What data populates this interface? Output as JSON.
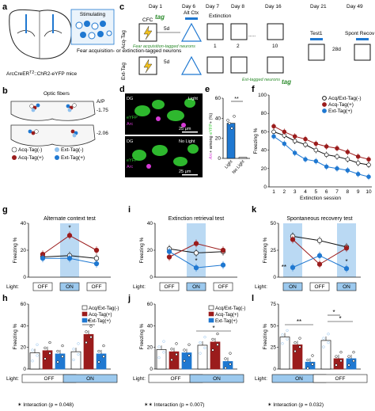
{
  "colors": {
    "acq_neg": "#ffffff",
    "acq_pos": "#9b1c1c",
    "ext_pos": "#1f78d1",
    "ext_light": "#8fc1ee",
    "on_shade": "#9cc9ee",
    "green_tag": "#2a8a2a",
    "microscope_bg": "#000000",
    "yfp_green": "#33cc33",
    "arc_magenta": "#d63ad6"
  },
  "panels": {
    "a": {
      "letter": "a",
      "stimulating": "Stimulating",
      "caption": "Fear acquisition- or extinction-tagged neurons",
      "mouse_line": "ArcCreER",
      "mouse_sup": "T2",
      "mouse_rest": "::ChR2-eYFP mice"
    },
    "b": {
      "letter": "b",
      "title": "Optic fibers",
      "ap_label": "A/P",
      "ap1": "-1.75",
      "ap2": "-2.06",
      "legend": [
        {
          "label": "Acq-Tag(-)",
          "color": "#ffffff"
        },
        {
          "label": "Ext-Tag(-)",
          "color": "#8fc1ee"
        },
        {
          "label": "Acq-Tag(+)",
          "color": "#9b1c1c"
        },
        {
          "label": "Ext-Tag(+)",
          "color": "#1f78d1"
        }
      ]
    },
    "c": {
      "letter": "c",
      "days": [
        "Day 1",
        "Day 6",
        "Day 7",
        "Day 8",
        "Day 16",
        "Day 21",
        "Day 49"
      ],
      "row1": "Acq-Tag",
      "row2": "Ext-Tag",
      "cfc": "CFC",
      "alt_ctx": "Alt Ctx",
      "extinction": "Extinction",
      "tag": "tag",
      "gap": "5d",
      "gap2": "28d",
      "fear_label": "Fear acquisition-tagged neurons",
      "ext_label": "Ext-tagged neurons",
      "test1": "Test1",
      "spont": "Spont Recov",
      "box_nums": [
        "1",
        "1",
        "2",
        "10",
        "1"
      ],
      "dots": "....."
    },
    "d": {
      "letter": "d",
      "region": "DG",
      "light": "Light",
      "no_light": "No Light",
      "scale": "25 μm",
      "eyfp": "eYFP",
      "arc": "Arc"
    },
    "e": {
      "letter": "e",
      "sig": "**",
      "ylabel_parts": [
        "Arc",
        "+ among ",
        "eYFP",
        "+ (%)"
      ]
    },
    "f": {
      "letter": "f",
      "title": "",
      "xlabel": "Extinction session",
      "ylabel": "Freezing %"
    },
    "g": {
      "letter": "g",
      "title": "Alternate context test",
      "ylabel": "Freezing %",
      "sig": [
        "*"
      ]
    },
    "i": {
      "letter": "i",
      "title": "Extinction retrieval test",
      "ylabel": "Freezing %",
      "sig": [
        "*"
      ]
    },
    "k": {
      "letter": "k",
      "title": "Spontaneous recovery test",
      "ylabel": "Freezing %",
      "sig": [
        "**",
        "*"
      ]
    },
    "h": {
      "letter": "h",
      "ylabel": "Freezing %",
      "sig": [
        "*"
      ],
      "interaction": "✶ Interaction (p = 0.048)"
    },
    "j": {
      "letter": "j",
      "ylabel": "Freezing %",
      "sig": [
        "*"
      ],
      "interaction": "✶✶ Interaction (p = 0.007)"
    },
    "l": {
      "letter": "l",
      "ylabel": "Freezing %",
      "sig": [
        "**",
        "*",
        "*"
      ],
      "interaction": "✶ Interaction (p = 0.032)"
    },
    "light_label": "Light:",
    "on": "ON",
    "off": "OFF"
  },
  "chart_data": [
    {
      "panel": "e",
      "type": "bar",
      "categories": [
        "Light",
        "No Light"
      ],
      "values": [
        35,
        1
      ],
      "ylim": [
        0,
        60
      ],
      "yticks": [
        "0",
        "20",
        "40",
        "60"
      ]
    },
    {
      "panel": "f",
      "type": "line",
      "x": [
        1,
        2,
        3,
        4,
        5,
        6,
        7,
        8,
        9,
        10
      ],
      "xticks": [
        "1",
        "2",
        "3",
        "4",
        "5",
        "6",
        "7",
        "8",
        "9",
        "10"
      ],
      "ylim": [
        0,
        100
      ],
      "yticks": [
        "0",
        "20",
        "40",
        "60",
        "80",
        "100"
      ],
      "xlabel": "Extinction session",
      "ylabel": "Freezing %",
      "series": [
        {
          "name": "Acq/Ext-Tag(-)",
          "values": [
            60,
            56,
            50,
            46,
            40,
            35,
            33,
            30,
            26,
            24
          ]
        },
        {
          "name": "Acq-Tag(+)",
          "values": [
            66,
            60,
            55,
            52,
            47,
            44,
            42,
            38,
            33,
            30
          ]
        },
        {
          "name": "Ext-Tag(+)",
          "values": [
            55,
            47,
            37,
            30,
            28,
            22,
            20,
            18,
            14,
            11
          ]
        }
      ]
    },
    {
      "panel": "g",
      "type": "line",
      "categories": [
        "OFF",
        "ON",
        "OFF"
      ],
      "ylim": [
        0,
        40
      ],
      "yticks": [
        "0",
        "20",
        "40"
      ],
      "series": [
        {
          "name": "Acq/Ext-Tag(-)",
          "values": [
            15,
            16,
            14
          ]
        },
        {
          "name": "Acq-Tag(+)",
          "values": [
            17,
            31,
            20
          ]
        },
        {
          "name": "Ext-Tag(+)",
          "values": [
            14,
            14,
            10
          ]
        }
      ]
    },
    {
      "panel": "i",
      "type": "line",
      "categories": [
        "OFF",
        "ON",
        "OFF"
      ],
      "ylim": [
        0,
        40
      ],
      "yticks": [
        "0",
        "20",
        "40"
      ],
      "series": [
        {
          "name": "Acq/Ext-Tag(-)",
          "values": [
            21,
            18,
            19
          ]
        },
        {
          "name": "Acq-Tag(+)",
          "values": [
            15,
            25,
            20
          ]
        },
        {
          "name": "Ext-Tag(+)",
          "values": [
            19,
            7,
            9
          ]
        }
      ]
    },
    {
      "panel": "k",
      "type": "line",
      "categories": [
        "ON",
        "OFF",
        "ON"
      ],
      "ylim": [
        0,
        50
      ],
      "yticks": [
        "0",
        "25",
        "50"
      ],
      "series": [
        {
          "name": "Acq/Ext-Tag(-)",
          "values": [
            38,
            34,
            28
          ]
        },
        {
          "name": "Acq-Tag(+)",
          "values": [
            35,
            12,
            27
          ]
        },
        {
          "name": "Ext-Tag(+)",
          "values": [
            9,
            20,
            8
          ]
        }
      ]
    },
    {
      "panel": "h",
      "type": "bar",
      "groups": [
        "OFF",
        "ON"
      ],
      "ylim": [
        0,
        60
      ],
      "yticks": [
        "0",
        "20",
        "40",
        "60"
      ],
      "series": [
        {
          "name": "Acq/Ext-Tag(-)",
          "values": [
            15,
            16
          ]
        },
        {
          "name": "Acq-Tag(+)",
          "values": [
            17,
            32
          ]
        },
        {
          "name": "Ext-Tag(+)",
          "values": [
            14,
            14
          ]
        }
      ]
    },
    {
      "panel": "j",
      "type": "bar",
      "groups": [
        "OFF",
        "ON"
      ],
      "ylim": [
        0,
        60
      ],
      "yticks": [
        "0",
        "20",
        "40",
        "60"
      ],
      "series": [
        {
          "name": "Acq/Ext-Tag(-)",
          "values": [
            18,
            22
          ]
        },
        {
          "name": "Acq-Tag(+)",
          "values": [
            16,
            25
          ]
        },
        {
          "name": "Ext-Tag(+)",
          "values": [
            15,
            7
          ]
        }
      ]
    },
    {
      "panel": "l",
      "type": "bar",
      "groups": [
        "ON",
        "OFF"
      ],
      "ylim": [
        0,
        75
      ],
      "yticks": [
        "0",
        "25",
        "50",
        "75"
      ],
      "series": [
        {
          "name": "Acq/Ext-Tag(-)",
          "values": [
            37,
            33
          ]
        },
        {
          "name": "Acq-Tag(+)",
          "values": [
            28,
            12
          ]
        },
        {
          "name": "Ext-Tag(+)",
          "values": [
            8,
            12
          ]
        }
      ]
    }
  ]
}
